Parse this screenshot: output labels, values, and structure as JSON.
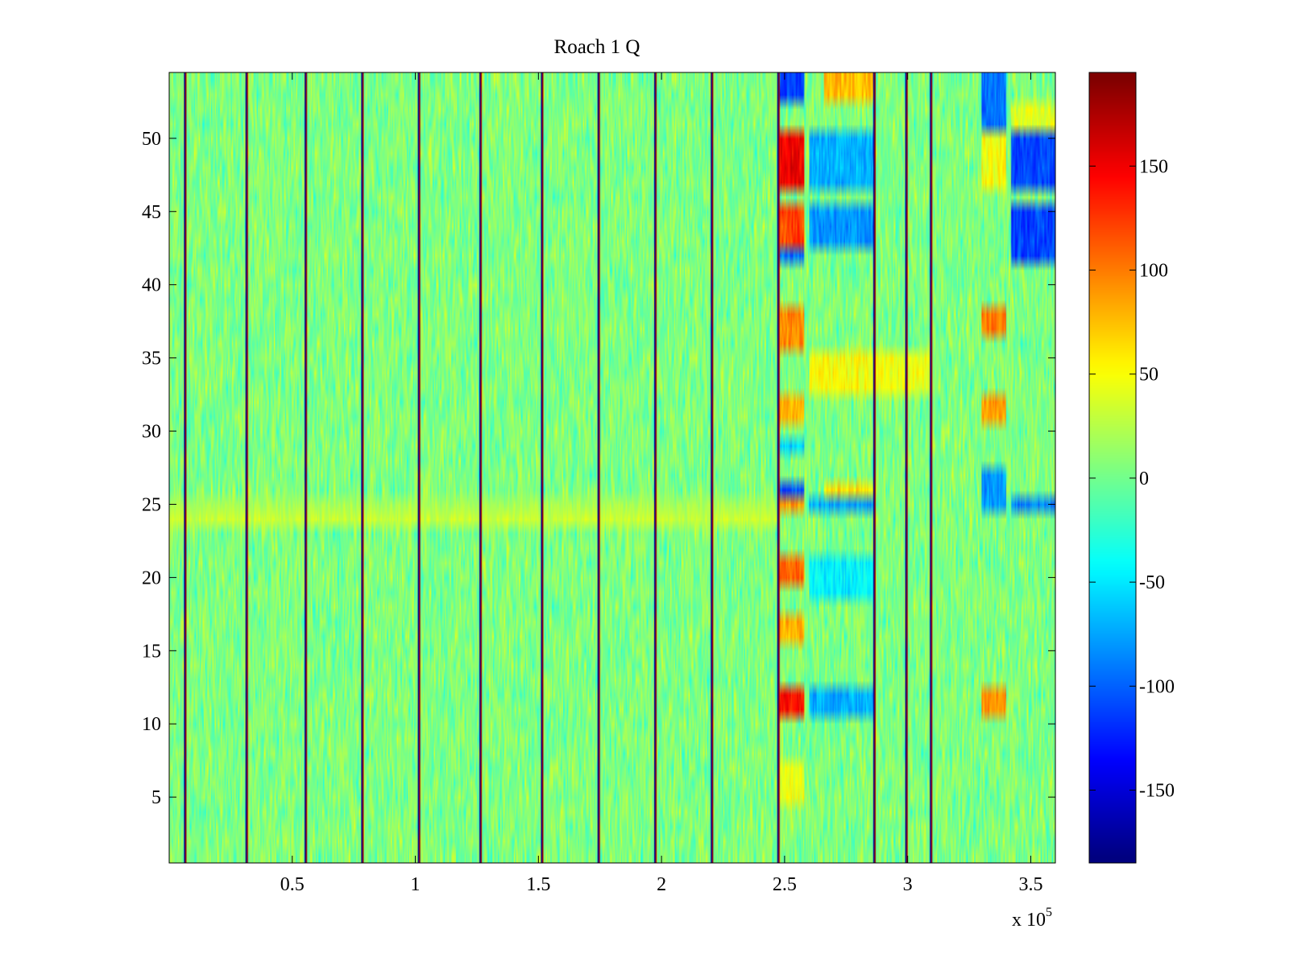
{
  "chart_data": {
    "type": "heatmap",
    "title": "Roach 1 Q",
    "xlabel": "",
    "ylabel": "",
    "x_exponent_label": "x 10",
    "x_exponent_power": "5",
    "xlim": [
      0,
      3.6
    ],
    "ylim": [
      0.5,
      54.5
    ],
    "rows": 54,
    "x_ticks": [
      0.5,
      1,
      1.5,
      2,
      2.5,
      3,
      3.5
    ],
    "x_tick_labels": [
      "0.5",
      "1",
      "1.5",
      "2",
      "2.5",
      "3",
      "3.5"
    ],
    "y_ticks": [
      5,
      10,
      15,
      20,
      25,
      30,
      35,
      40,
      45,
      50
    ],
    "y_tick_labels": [
      "5",
      "10",
      "15",
      "20",
      "25",
      "30",
      "35",
      "40",
      "45",
      "50"
    ],
    "colorbar": {
      "colormap": "jet",
      "clim": [
        -185,
        195
      ],
      "ticks": [
        -150,
        -100,
        -50,
        0,
        50,
        100,
        150
      ],
      "tick_labels": [
        "-150",
        "-100",
        "-50",
        "0",
        "50",
        "100",
        "150"
      ]
    },
    "background_noise": {
      "mean": 5,
      "amplitude": 22
    },
    "vertical_spike_lines_x": [
      0.06,
      0.31,
      0.55,
      0.78,
      1.01,
      1.26,
      1.51,
      1.74,
      1.97,
      2.2,
      2.47,
      2.86,
      2.99,
      3.09
    ],
    "row_bands": [
      {
        "row": 24,
        "value": 32,
        "x_range": [
          0,
          2.47
        ]
      },
      {
        "row": 25,
        "value": 20,
        "x_range": [
          0,
          2.47
        ]
      }
    ],
    "blocks": [
      {
        "x_range": [
          2.47,
          2.58
        ],
        "rows": [
          47,
          50
        ],
        "value": 150
      },
      {
        "x_range": [
          2.47,
          2.58
        ],
        "rows": [
          43,
          45
        ],
        "value": 120
      },
      {
        "x_range": [
          2.47,
          2.58
        ],
        "rows": [
          42,
          42
        ],
        "value": -95
      },
      {
        "x_range": [
          2.47,
          2.58
        ],
        "rows": [
          53,
          54
        ],
        "value": -110
      },
      {
        "x_range": [
          2.47,
          2.58
        ],
        "rows": [
          36,
          38
        ],
        "value": 95
      },
      {
        "x_range": [
          2.47,
          2.58
        ],
        "rows": [
          26,
          26
        ],
        "value": -105
      },
      {
        "x_range": [
          2.47,
          2.58
        ],
        "rows": [
          25,
          25
        ],
        "value": 90
      },
      {
        "x_range": [
          2.47,
          2.58
        ],
        "rows": [
          31,
          32
        ],
        "value": 80
      },
      {
        "x_range": [
          2.47,
          2.58
        ],
        "rows": [
          29,
          29
        ],
        "value": -60
      },
      {
        "x_range": [
          2.47,
          2.58
        ],
        "rows": [
          20,
          21
        ],
        "value": 110
      },
      {
        "x_range": [
          2.47,
          2.58
        ],
        "rows": [
          16,
          17
        ],
        "value": 80
      },
      {
        "x_range": [
          2.47,
          2.58
        ],
        "rows": [
          11,
          12
        ],
        "value": 140
      },
      {
        "x_range": [
          2.47,
          2.58
        ],
        "rows": [
          5,
          7
        ],
        "value": 45
      },
      {
        "x_range": [
          2.6,
          2.86
        ],
        "rows": [
          47,
          50
        ],
        "value": -70
      },
      {
        "x_range": [
          2.6,
          2.86
        ],
        "rows": [
          43,
          45
        ],
        "value": -80
      },
      {
        "x_range": [
          2.66,
          2.86
        ],
        "rows": [
          53,
          54
        ],
        "value": 75
      },
      {
        "x_range": [
          2.6,
          2.86
        ],
        "rows": [
          33,
          35
        ],
        "value": 50
      },
      {
        "x_range": [
          2.6,
          2.86
        ],
        "rows": [
          25,
          25
        ],
        "value": -75
      },
      {
        "x_range": [
          2.66,
          2.86
        ],
        "rows": [
          26,
          26
        ],
        "value": 60
      },
      {
        "x_range": [
          2.6,
          2.86
        ],
        "rows": [
          11,
          12
        ],
        "value": -70
      },
      {
        "x_range": [
          2.6,
          2.86
        ],
        "rows": [
          19,
          21
        ],
        "value": -45
      },
      {
        "x_range": [
          2.86,
          3.09
        ],
        "rows": [
          33,
          35
        ],
        "value": 45
      },
      {
        "x_range": [
          3.3,
          3.4
        ],
        "rows": [
          51,
          54
        ],
        "value": -95
      },
      {
        "x_range": [
          3.3,
          3.4
        ],
        "rows": [
          47,
          50
        ],
        "value": 50
      },
      {
        "x_range": [
          3.42,
          3.6
        ],
        "rows": [
          47,
          50
        ],
        "value": -110
      },
      {
        "x_range": [
          3.42,
          3.6
        ],
        "rows": [
          42,
          45
        ],
        "value": -110
      },
      {
        "x_range": [
          3.3,
          3.4
        ],
        "rows": [
          37,
          38
        ],
        "value": 100
      },
      {
        "x_range": [
          3.3,
          3.4
        ],
        "rows": [
          31,
          32
        ],
        "value": 85
      },
      {
        "x_range": [
          3.3,
          3.4
        ],
        "rows": [
          11,
          12
        ],
        "value": 90
      },
      {
        "x_range": [
          3.3,
          3.4
        ],
        "rows": [
          25,
          27
        ],
        "value": -80
      },
      {
        "x_range": [
          3.42,
          3.6
        ],
        "rows": [
          25,
          25
        ],
        "value": -90
      },
      {
        "x_range": [
          3.42,
          3.6
        ],
        "rows": [
          51,
          52
        ],
        "value": 40
      }
    ]
  }
}
